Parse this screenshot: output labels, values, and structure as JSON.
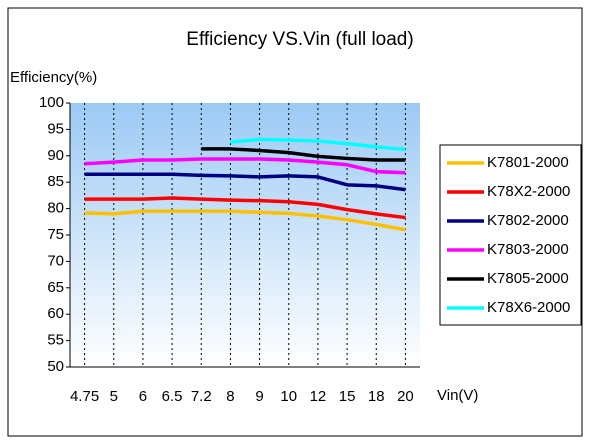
{
  "chart_data": {
    "type": "line",
    "title": "Efficiency VS.Vin (full load)",
    "y_label": "Efficiency(%)",
    "x_label": "Vin(V)",
    "categories": [
      "4.75",
      "5",
      "6",
      "6.5",
      "7.2",
      "8",
      "9",
      "10",
      "12",
      "15",
      "18",
      "20"
    ],
    "series": [
      {
        "name": "K7801-2000",
        "color": "#ffc000",
        "values": [
          79.2,
          79,
          79.5,
          79.5,
          79.5,
          79.5,
          79.3,
          79.1,
          78.6,
          77.9,
          77,
          76
        ]
      },
      {
        "name": "K78X2-2000",
        "color": "#ff0000",
        "values": [
          81.8,
          81.8,
          81.8,
          82,
          81.8,
          81.6,
          81.5,
          81.3,
          80.8,
          79.8,
          79,
          78.3
        ]
      },
      {
        "name": "K7802-2000",
        "color": "#000080",
        "values": [
          86.5,
          86.5,
          86.5,
          86.5,
          86.3,
          86.2,
          86,
          86.2,
          86,
          84.5,
          84.3,
          83.6
        ]
      },
      {
        "name": "K7803-2000",
        "color": "#ff00ff",
        "values": [
          88.5,
          88.8,
          89.2,
          89.2,
          89.4,
          89.4,
          89.4,
          89.2,
          88.8,
          88.3,
          87,
          86.8
        ]
      },
      {
        "name": "K7805-2000",
        "color": "#000000",
        "values": [
          null,
          null,
          null,
          null,
          91.3,
          91.3,
          91,
          90.6,
          89.9,
          89.5,
          89.2,
          89.2
        ]
      },
      {
        "name": "K78X6-2000",
        "color": "#00ffff",
        "values": [
          null,
          null,
          null,
          null,
          null,
          92.6,
          93.1,
          93,
          92.8,
          92.3,
          91.7,
          91.2
        ]
      }
    ],
    "ylim": [
      50,
      100
    ],
    "yticks": [
      50,
      55,
      60,
      65,
      70,
      75,
      80,
      85,
      90,
      95,
      100
    ],
    "grid": "x",
    "legend": "right"
  }
}
